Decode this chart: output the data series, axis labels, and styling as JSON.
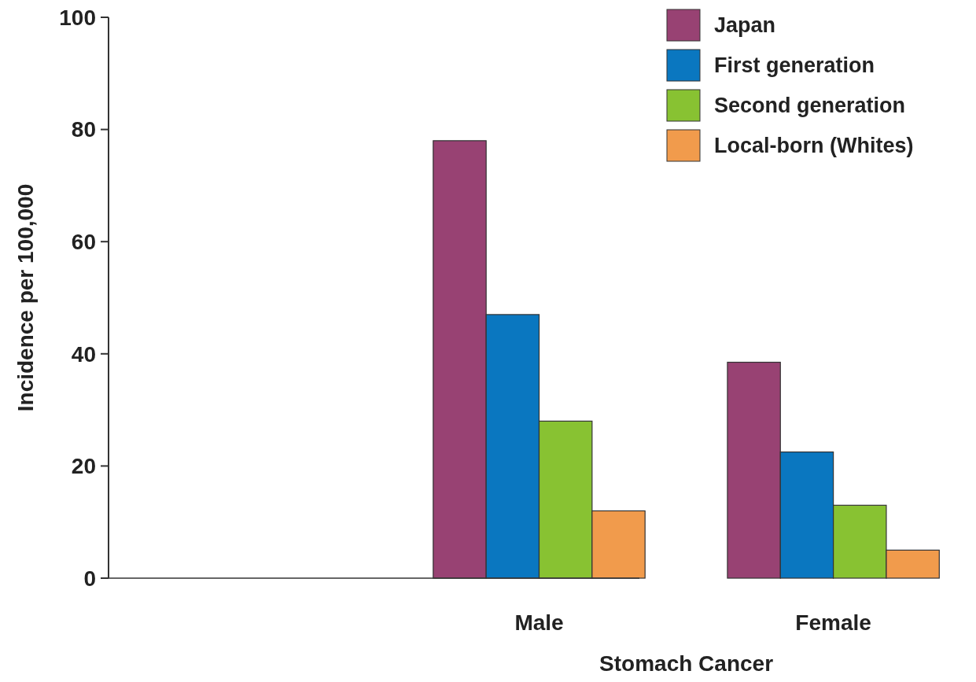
{
  "chart_data": {
    "type": "bar",
    "xlabel": "Stomach Cancer",
    "ylabel": "Incidence per 100,000",
    "categories": [
      null,
      "Male",
      "Female"
    ],
    "series": [
      {
        "name": "Japan",
        "color": "#984273",
        "values": [
          0,
          78,
          38.5
        ]
      },
      {
        "name": "First generation",
        "color": "#0a77c0",
        "values": [
          0,
          47,
          22.5
        ]
      },
      {
        "name": "Second generation",
        "color": "#88c232",
        "values": [
          0,
          28,
          13
        ]
      },
      {
        "name": "Local-born (Whites)",
        "color": "#f19b4c",
        "values": [
          0,
          12,
          5
        ]
      }
    ],
    "ylim": [
      0,
      100
    ],
    "yticks": [
      0,
      20,
      40,
      60,
      80,
      100
    ],
    "grid": false,
    "legend": "top right"
  }
}
